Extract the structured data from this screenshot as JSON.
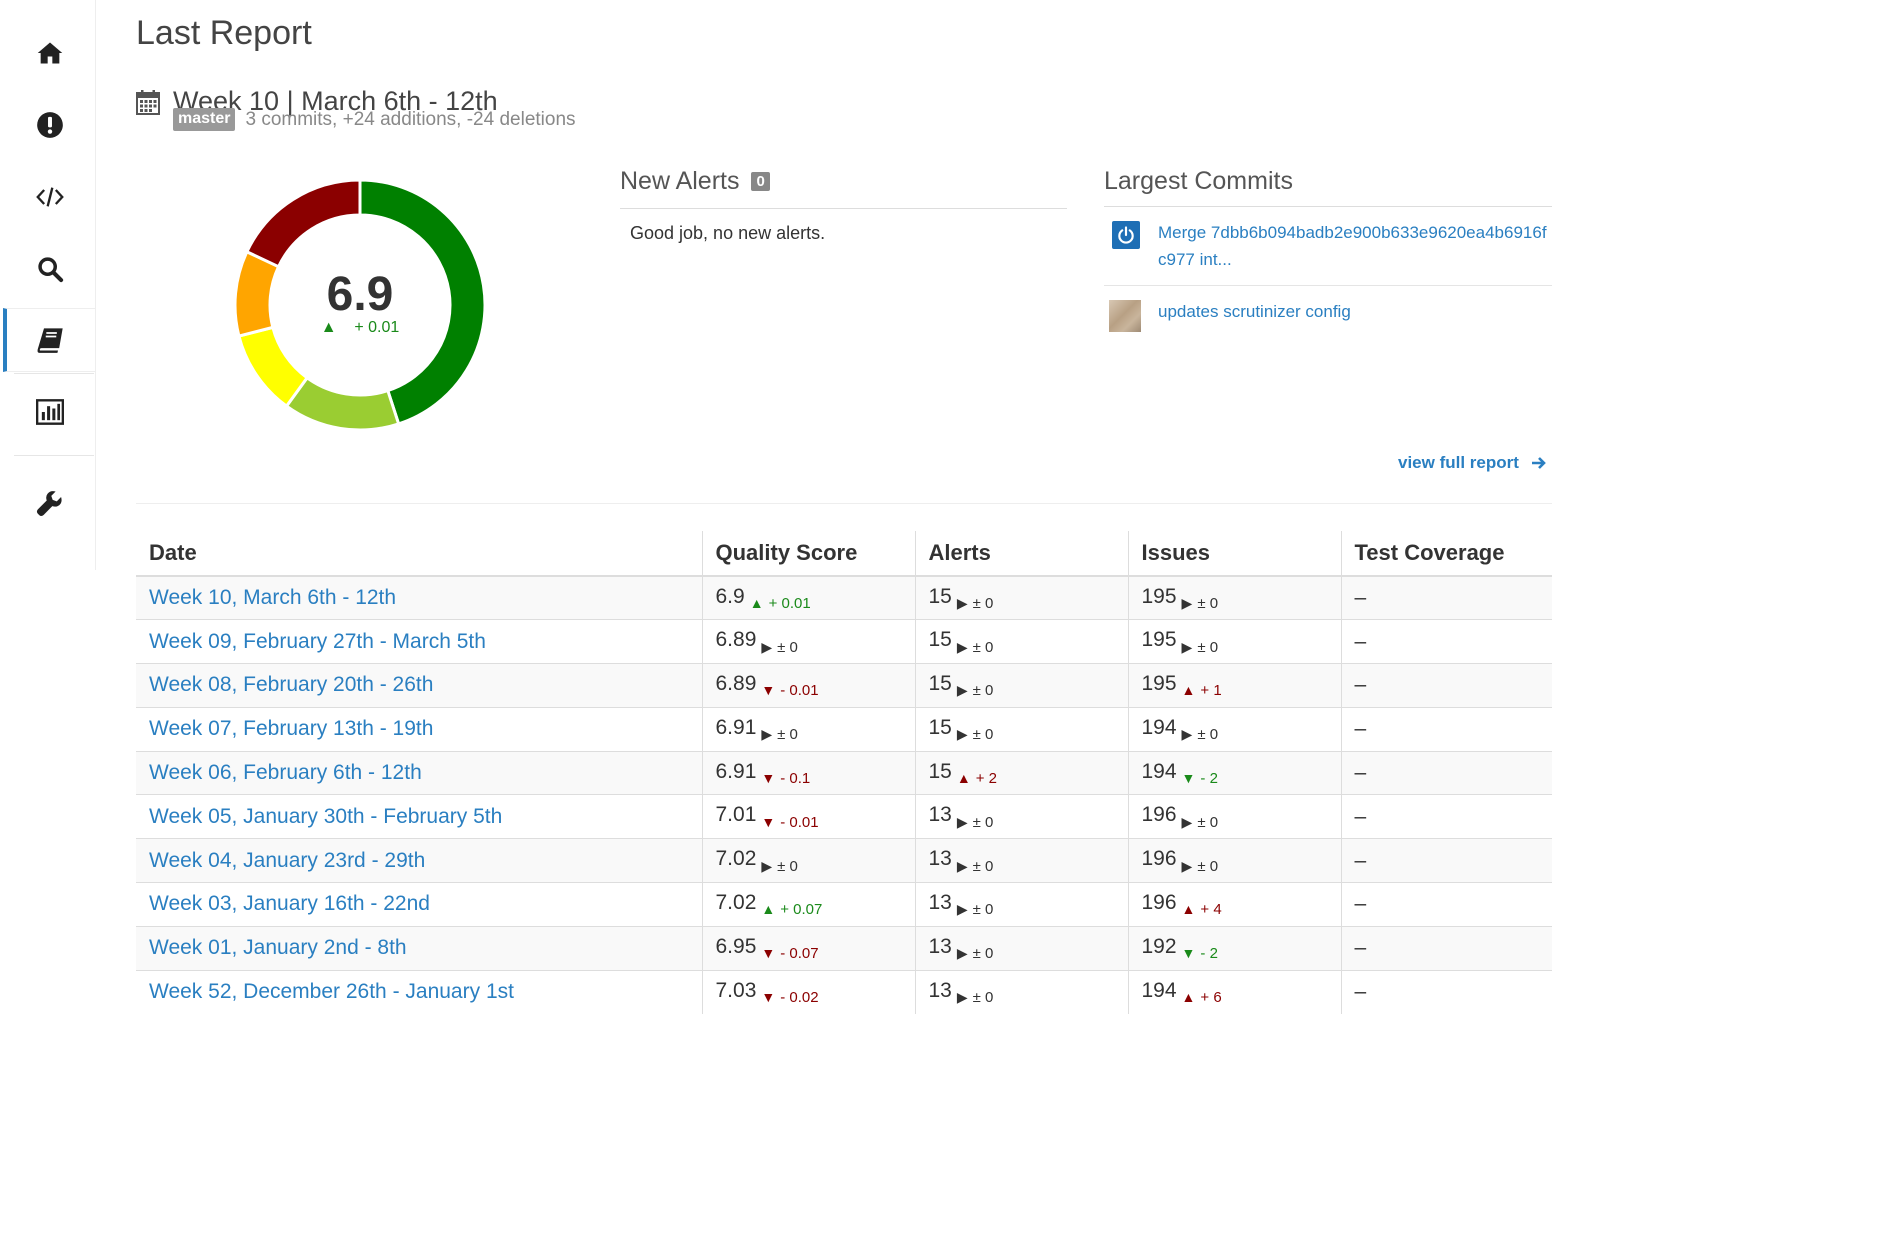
{
  "header": {
    "title": "Last Report",
    "week": "Week 10 | March 6th - 12th",
    "branch": "master",
    "commit_summary": "3 commits, +24 additions, -24 deletions"
  },
  "score": {
    "value": "6.9",
    "delta_arrow": "▲",
    "delta": "+ 0.01"
  },
  "donut_segments": [
    {
      "color": "#008000",
      "fraction": 0.45
    },
    {
      "color": "#9ACD32",
      "fraction": 0.15
    },
    {
      "color": "#FFFF00",
      "fraction": 0.11
    },
    {
      "color": "#FFA500",
      "fraction": 0.11
    },
    {
      "color": "#8B0000",
      "fraction": 0.18
    }
  ],
  "alerts": {
    "title": "New Alerts",
    "count": "0",
    "message": "Good job, no new alerts."
  },
  "commits": {
    "title": "Largest Commits",
    "items": [
      {
        "text": "Merge 7dbb6b094badb2e900b633e9620ea4b6916fc977 int...",
        "avatar": "power-icon"
      },
      {
        "text": "updates scrutinizer config",
        "avatar": "pixel-avatar"
      }
    ]
  },
  "view_full": "view full report",
  "table": {
    "headers": [
      "Date",
      "Quality Score",
      "Alerts",
      "Issues",
      "Test Coverage"
    ],
    "rows": [
      {
        "date": "Week 10, March 6th - 12th",
        "q": "6.9",
        "qa": "▲",
        "qd": "+ 0.01",
        "qt": "up",
        "a": "15",
        "aa": "▶",
        "ad": "± 0",
        "at": "flat",
        "i": "195",
        "ia": "▶",
        "id": "± 0",
        "it": "flat",
        "c": "–"
      },
      {
        "date": "Week 09, February 27th - March 5th",
        "q": "6.89",
        "qa": "▶",
        "qd": "± 0",
        "qt": "flat",
        "a": "15",
        "aa": "▶",
        "ad": "± 0",
        "at": "flat",
        "i": "195",
        "ia": "▶",
        "id": "± 0",
        "it": "flat",
        "c": "–"
      },
      {
        "date": "Week 08, February 20th - 26th",
        "q": "6.89",
        "qa": "▼",
        "qd": "- 0.01",
        "qt": "down",
        "a": "15",
        "aa": "▶",
        "ad": "± 0",
        "at": "flat",
        "i": "195",
        "ia": "▲",
        "id": "+ 1",
        "it": "upbad",
        "c": "–"
      },
      {
        "date": "Week 07, February 13th - 19th",
        "q": "6.91",
        "qa": "▶",
        "qd": "± 0",
        "qt": "flat",
        "a": "15",
        "aa": "▶",
        "ad": "± 0",
        "at": "flat",
        "i": "194",
        "ia": "▶",
        "id": "± 0",
        "it": "flat",
        "c": "–"
      },
      {
        "date": "Week 06, February 6th - 12th",
        "q": "6.91",
        "qa": "▼",
        "qd": "- 0.1",
        "qt": "down",
        "a": "15",
        "aa": "▲",
        "ad": "+ 2",
        "at": "upbad",
        "i": "194",
        "ia": "▼",
        "id": "- 2",
        "it": "downgood",
        "c": "–"
      },
      {
        "date": "Week 05, January 30th - February 5th",
        "q": "7.01",
        "qa": "▼",
        "qd": "- 0.01",
        "qt": "down",
        "a": "13",
        "aa": "▶",
        "ad": "± 0",
        "at": "flat",
        "i": "196",
        "ia": "▶",
        "id": "± 0",
        "it": "flat",
        "c": "–"
      },
      {
        "date": "Week 04, January 23rd - 29th",
        "q": "7.02",
        "qa": "▶",
        "qd": "± 0",
        "qt": "flat",
        "a": "13",
        "aa": "▶",
        "ad": "± 0",
        "at": "flat",
        "i": "196",
        "ia": "▶",
        "id": "± 0",
        "it": "flat",
        "c": "–"
      },
      {
        "date": "Week 03, January 16th - 22nd",
        "q": "7.02",
        "qa": "▲",
        "qd": "+ 0.07",
        "qt": "up",
        "a": "13",
        "aa": "▶",
        "ad": "± 0",
        "at": "flat",
        "i": "196",
        "ia": "▲",
        "id": "+ 4",
        "it": "upbad",
        "c": "–"
      },
      {
        "date": "Week 01, January 2nd - 8th",
        "q": "6.95",
        "qa": "▼",
        "qd": "- 0.07",
        "qt": "down",
        "a": "13",
        "aa": "▶",
        "ad": "± 0",
        "at": "flat",
        "i": "192",
        "ia": "▼",
        "id": "- 2",
        "it": "downgood",
        "c": "–"
      },
      {
        "date": "Week 52, December 26th - January 1st",
        "q": "7.03",
        "qa": "▼",
        "qd": "- 0.02",
        "qt": "down",
        "a": "13",
        "aa": "▶",
        "ad": "± 0",
        "at": "flat",
        "i": "194",
        "ia": "▲",
        "id": "+ 6",
        "it": "upbad",
        "c": "–"
      }
    ]
  },
  "sidebar": {
    "items": [
      {
        "icon": "home-icon"
      },
      {
        "icon": "alert-icon"
      },
      {
        "icon": "code-icon"
      },
      {
        "icon": "search-icon"
      },
      {
        "icon": "book-icon",
        "active": true
      },
      {
        "icon": "bar-chart-icon"
      },
      {
        "icon": "wrench-icon"
      }
    ]
  }
}
